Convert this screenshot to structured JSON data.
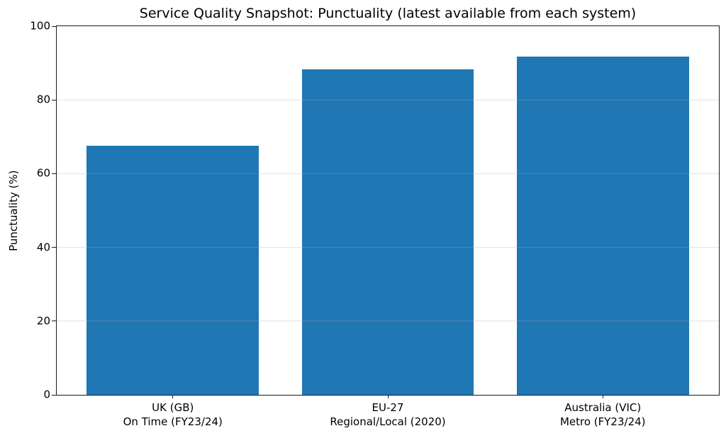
{
  "chart_data": {
    "type": "bar",
    "title": "Service Quality Snapshot: Punctuality (latest available from each system)",
    "ylabel": "Punctuality (%)",
    "xlabel": "",
    "categories": [
      [
        "UK (GB)",
        "On Time (FY23/24)"
      ],
      [
        "EU-27",
        "Regional/Local (2020)"
      ],
      [
        "Australia (VIC)",
        "Metro (FY23/24)"
      ]
    ],
    "category_names": [
      "uk-gb-on-time",
      "eu-27-regional-local",
      "australia-vic-metro"
    ],
    "values": [
      67.5,
      88.2,
      91.8
    ],
    "ylim": [
      0,
      100
    ],
    "yticks": [
      "0",
      "20",
      "40",
      "60",
      "80",
      "100"
    ],
    "grid": true,
    "grid_axis": "y",
    "grid_over_bars": true,
    "legend_position": "none",
    "bar_color": "#1f77b4",
    "axis_color": "#1a1a1a",
    "grid_color_rgba": "rgba(176,176,176,0.35)",
    "text_color": "#000000"
  }
}
